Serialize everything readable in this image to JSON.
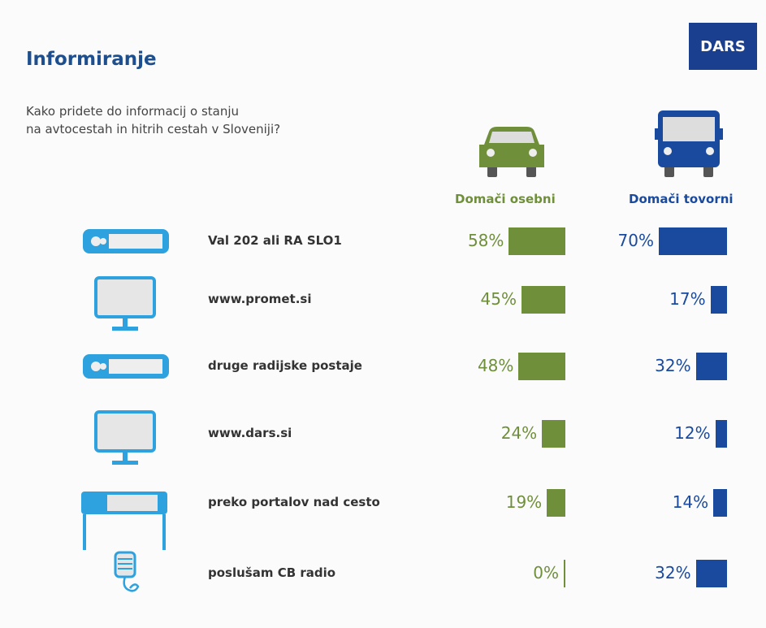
{
  "title": "Informiranje",
  "logo": "DARS",
  "question_line1": "Kako pridete do informacij o stanju",
  "question_line2": "na avtocestah in hitrih cestah v Sloveniji?",
  "colors": {
    "green": "#6f8f3a",
    "blue": "#1a4a9e",
    "icon": "#2ea1df"
  },
  "chart_data": {
    "type": "bar",
    "series": [
      {
        "name": "Domači osebni",
        "values": [
          58,
          45,
          48,
          24,
          19,
          0
        ]
      },
      {
        "name": "Domači tovorni",
        "values": [
          70,
          17,
          32,
          12,
          14,
          32
        ]
      }
    ],
    "categories": [
      "Val 202 ali RA SLO1",
      "www.promet.si",
      "druge radijske postaje",
      "www.dars.si",
      "preko portalov nad cesto",
      "poslušam CB radio"
    ],
    "icons": [
      "radio-icon",
      "monitor-icon",
      "radio-icon",
      "monitor-icon",
      "gantry-sign-icon",
      "cb-microphone-icon"
    ],
    "value_labels": [
      [
        "58%",
        "45%",
        "48%",
        "24%",
        "19%",
        "0%"
      ],
      [
        "70%",
        "17%",
        "32%",
        "12%",
        "14%",
        "32%"
      ]
    ],
    "ylim": [
      0,
      100
    ]
  }
}
